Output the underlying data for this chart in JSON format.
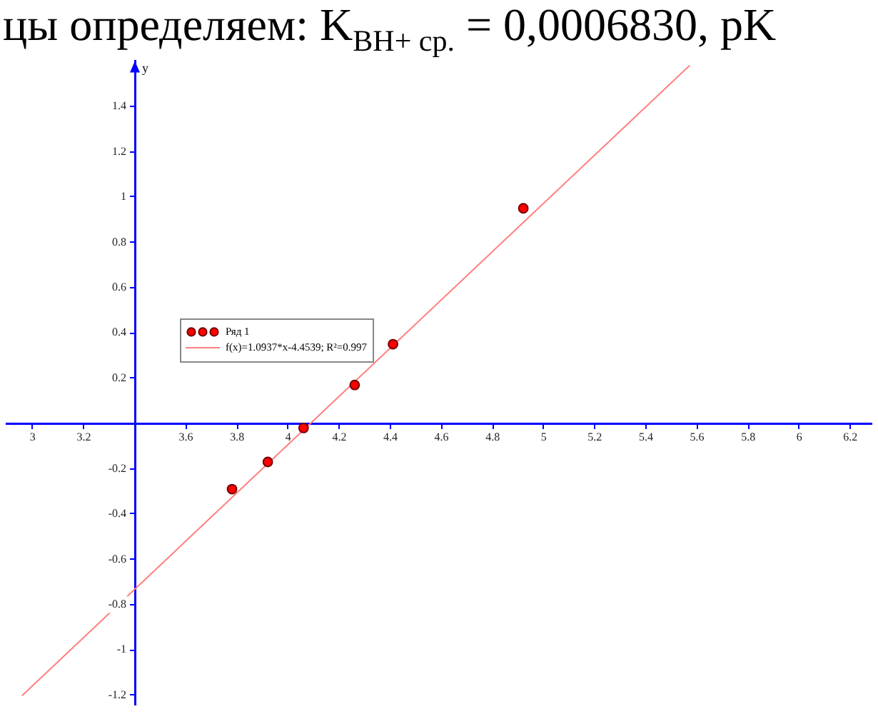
{
  "chart_data": {
    "type": "scatter",
    "annotations": [
      "цы определяем: K$_{BH+ ср.}$ = 0,0006830, pK"
    ],
    "ylabel": "y",
    "series": [
      {
        "name": "Ряд 1",
        "color": "#ff0000",
        "x": [
          3.78,
          3.92,
          4.06,
          4.26,
          4.41,
          4.92
        ],
        "values": [
          -0.29,
          -0.17,
          -0.02,
          0.17,
          0.35,
          0.95
        ]
      },
      {
        "type": "line",
        "name": "f(x)=1.0937*x-4.4539; R²=0.997",
        "color": "#ff8080",
        "marker": "none",
        "x": [
          2.96,
          5.57
        ],
        "values": [
          -1.2,
          1.58
        ]
      }
    ],
    "xlim": [
      2.9,
      6.28
    ],
    "ylim": [
      -1.24,
      1.6
    ],
    "xticks": [
      3,
      3.2,
      {
        "value": 3.4,
        "label": null
      },
      3.6,
      3.8,
      4,
      4.2,
      4.4,
      4.6,
      4.8,
      5,
      5.2,
      5.4,
      5.6,
      5.8,
      6,
      6.2
    ],
    "yticks": [
      -1.2,
      -1,
      -0.8,
      -0.6,
      -0.4,
      -0.2,
      {
        "value": 0,
        "label": null
      },
      0.2,
      0.4,
      0.6,
      0.8,
      1,
      1.2,
      1.4
    ],
    "legend": "left",
    "marker": "circle",
    "line_style": "solid"
  }
}
